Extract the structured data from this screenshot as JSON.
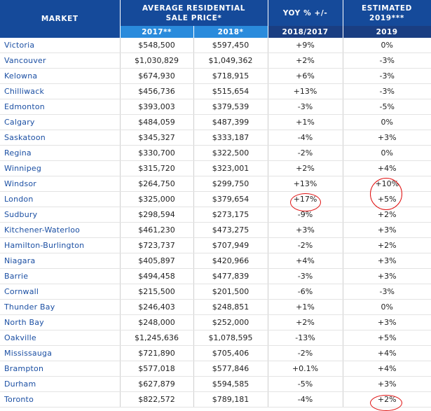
{
  "headers": {
    "market": "MARKET",
    "avg_price_line1": "AVERAGE RESIDENTIAL",
    "avg_price_line2": "SALE PRICE*",
    "yoy": "YOY % +/-",
    "estimated_line1": "ESTIMATED",
    "estimated_line2": "2019***",
    "sub_2017": "2017**",
    "sub_2018": "2018*",
    "sub_yoy": "2018/2017",
    "sub_2019": "2019"
  },
  "rows": [
    {
      "market": "Victoria",
      "p2017": "$548,500",
      "p2018": "$597,450",
      "yoy": "+9%",
      "est2019": "0%"
    },
    {
      "market": "Vancouver",
      "p2017": "$1,030,829",
      "p2018": "$1,049,362",
      "yoy": "+2%",
      "est2019": "-3%"
    },
    {
      "market": "Kelowna",
      "p2017": "$674,930",
      "p2018": "$718,915",
      "yoy": "+6%",
      "est2019": "-3%"
    },
    {
      "market": "Chilliwack",
      "p2017": "$456,736",
      "p2018": "$515,654",
      "yoy": "+13%",
      "est2019": "-3%"
    },
    {
      "market": "Edmonton",
      "p2017": "$393,003",
      "p2018": "$379,539",
      "yoy": "-3%",
      "est2019": "-5%"
    },
    {
      "market": "Calgary",
      "p2017": "$484,059",
      "p2018": "$487,399",
      "yoy": "+1%",
      "est2019": "0%"
    },
    {
      "market": "Saskatoon",
      "p2017": "$345,327",
      "p2018": "$333,187",
      "yoy": "-4%",
      "est2019": "+3%"
    },
    {
      "market": "Regina",
      "p2017": "$330,700",
      "p2018": "$322,500",
      "yoy": "-2%",
      "est2019": "0%"
    },
    {
      "market": "Winnipeg",
      "p2017": "$315,720",
      "p2018": "$323,001",
      "yoy": "+2%",
      "est2019": "+4%"
    },
    {
      "market": "Windsor",
      "p2017": "$264,750",
      "p2018": "$299,750",
      "yoy": "+13%",
      "est2019": "+10%"
    },
    {
      "market": "London",
      "p2017": "$325,000",
      "p2018": "$379,654",
      "yoy": "+17%",
      "est2019": "+5%"
    },
    {
      "market": "Sudbury",
      "p2017": "$298,594",
      "p2018": "$273,175",
      "yoy": "-9%",
      "est2019": "+2%"
    },
    {
      "market": "Kitchener-Waterloo",
      "p2017": "$461,230",
      "p2018": "$473,275",
      "yoy": "+3%",
      "est2019": "+3%"
    },
    {
      "market": "Hamilton-Burlington",
      "p2017": "$723,737",
      "p2018": "$707,949",
      "yoy": "-2%",
      "est2019": "+2%"
    },
    {
      "market": "Niagara",
      "p2017": "$405,897",
      "p2018": "$420,966",
      "yoy": "+4%",
      "est2019": "+3%"
    },
    {
      "market": "Barrie",
      "p2017": "$494,458",
      "p2018": "$477,839",
      "yoy": "-3%",
      "est2019": "+3%"
    },
    {
      "market": "Cornwall",
      "p2017": "$215,500",
      "p2018": "$201,500",
      "yoy": "-6%",
      "est2019": "-3%"
    },
    {
      "market": "Thunder Bay",
      "p2017": "$246,403",
      "p2018": "$248,851",
      "yoy": "+1%",
      "est2019": "0%"
    },
    {
      "market": "North Bay",
      "p2017": "$248,000",
      "p2018": "$252,000",
      "yoy": "+2%",
      "est2019": "+3%"
    },
    {
      "market": "Oakville",
      "p2017": "$1,245,636",
      "p2018": "$1,078,595",
      "yoy": "-13%",
      "est2019": "+5%"
    },
    {
      "market": "Mississauga",
      "p2017": "$721,890",
      "p2018": "$705,406",
      "yoy": "-2%",
      "est2019": "+4%"
    },
    {
      "market": "Brampton",
      "p2017": "$577,018",
      "p2018": "$577,846",
      "yoy": "+0.1%",
      "est2019": "+4%"
    },
    {
      "market": "Durham",
      "p2017": "$627,879",
      "p2018": "$594,585",
      "yoy": "-5%",
      "est2019": "+3%"
    },
    {
      "market": "Toronto",
      "p2017": "$822,572",
      "p2018": "$789,181",
      "yoy": "-4%",
      "est2019": "+2%"
    }
  ],
  "colors": {
    "header_dark": "#154a9a",
    "header_light": "#2a8bdc",
    "header_navy": "#1a3e82",
    "market_text": "#1b4fa3",
    "annotation": "#e01010"
  }
}
